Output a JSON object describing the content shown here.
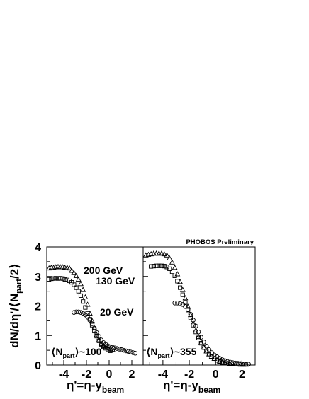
{
  "chart_data": {
    "type": "scatter",
    "collaboration_label": "PHOBOS Preliminary",
    "ylabel": {
      "pre": "dN/dη'/⟨N",
      "sub": "part",
      "post": "/2⟩"
    },
    "ylim": [
      0,
      4
    ],
    "yticks": [
      "0",
      "1",
      "2",
      "3",
      "4"
    ],
    "xlim": [
      -5.5,
      3
    ],
    "xticks": [
      -4,
      -2,
      0,
      2
    ],
    "xtick_labels": [
      "-4",
      "-2",
      "0",
      "2"
    ],
    "legend": {
      "s200": "200 GeV",
      "s130": "130 GeV",
      "s20": "20 GeV"
    },
    "panels": [
      {
        "npart_label": {
          "open": "⟨N",
          "sub": "part",
          "close": "⟩~100"
        },
        "xlabel": {
          "main": "η'=η-y",
          "sub": "beam"
        },
        "series": [
          {
            "key": "s200",
            "marker": "triangle",
            "x": [
              -5.3,
              -5.1,
              -4.9,
              -4.7,
              -4.5,
              -4.3,
              -4.1,
              -3.9,
              -3.7,
              -3.5,
              -3.3,
              -3.1,
              -2.9,
              -2.7,
              -2.5,
              -2.3,
              -2.1,
              -1.9,
              -1.7,
              -1.5,
              -1.3,
              -1.1,
              -0.9,
              -0.7,
              -0.5,
              -0.3,
              -0.1,
              0.1,
              0.3
            ],
            "y": [
              3.28,
              3.3,
              3.3,
              3.32,
              3.33,
              3.32,
              3.32,
              3.3,
              3.3,
              3.28,
              3.2,
              3.12,
              3.02,
              2.9,
              2.75,
              2.55,
              2.3,
              2.05,
              1.75,
              1.5,
              1.25,
              1.02,
              0.85,
              0.72,
              0.65,
              0.6,
              0.57,
              0.55,
              0.53
            ]
          },
          {
            "key": "s130",
            "marker": "square",
            "x": [
              -5.3,
              -5.1,
              -4.9,
              -4.7,
              -4.5,
              -4.3,
              -4.1,
              -3.9,
              -3.7,
              -3.5,
              -3.3,
              -3.1,
              -2.9,
              -2.7,
              -2.5,
              -2.3,
              -2.1,
              -1.9,
              -1.7,
              -1.5,
              -1.3,
              -1.1,
              -0.9,
              -0.7,
              -0.5,
              -0.3,
              -0.1,
              0.1
            ],
            "y": [
              2.9,
              2.92,
              2.93,
              2.94,
              2.93,
              2.94,
              2.93,
              2.9,
              2.88,
              2.85,
              2.8,
              2.72,
              2.62,
              2.5,
              2.35,
              2.15,
              1.95,
              1.75,
              1.55,
              1.35,
              1.15,
              0.98,
              0.82,
              0.7,
              0.62,
              0.57,
              0.52,
              0.48
            ]
          },
          {
            "key": "s20",
            "marker": "circle",
            "x": [
              -3.1,
              -2.9,
              -2.7,
              -2.5,
              -2.3,
              -2.1,
              -1.9,
              -1.7,
              -1.5,
              -1.3,
              -1.1,
              -0.9,
              -0.7,
              -0.5,
              -0.3,
              -0.1,
              0.1,
              0.3,
              0.5,
              0.7,
              0.9,
              1.1,
              1.3,
              1.5,
              1.7,
              1.9,
              2.1,
              2.3
            ],
            "y": [
              1.78,
              1.8,
              1.8,
              1.78,
              1.75,
              1.7,
              1.62,
              1.52,
              1.4,
              1.25,
              1.1,
              0.97,
              0.85,
              0.76,
              0.7,
              0.65,
              0.62,
              0.6,
              0.58,
              0.56,
              0.54,
              0.52,
              0.5,
              0.48,
              0.46,
              0.44,
              0.42,
              0.4
            ]
          }
        ]
      },
      {
        "npart_label": {
          "open": "⟨N",
          "sub": "part",
          "close": "⟩~355"
        },
        "xlabel": {
          "main": "η'=η-y",
          "sub": "beam"
        },
        "series": [
          {
            "key": "s200",
            "marker": "triangle",
            "x": [
              -5.3,
              -5.1,
              -4.9,
              -4.7,
              -4.5,
              -4.3,
              -4.1,
              -3.9,
              -3.7,
              -3.5,
              -3.3,
              -3.1,
              -2.9,
              -2.7,
              -2.5,
              -2.3,
              -2.1,
              -1.9,
              -1.7,
              -1.5,
              -1.3,
              -1.1,
              -0.9,
              -0.7,
              -0.5,
              -0.3,
              -0.1,
              0.1,
              0.3,
              0.5,
              0.7,
              0.9,
              1.1,
              1.3,
              1.5,
              1.7,
              1.9,
              2.1,
              2.3
            ],
            "y": [
              3.72,
              3.74,
              3.76,
              3.78,
              3.78,
              3.78,
              3.78,
              3.76,
              3.72,
              3.62,
              3.48,
              3.3,
              3.08,
              2.82,
              2.55,
              2.27,
              1.98,
              1.7,
              1.42,
              1.18,
              0.96,
              0.76,
              0.6,
              0.47,
              0.37,
              0.29,
              0.22,
              0.17,
              0.13,
              0.1,
              0.08,
              0.06,
              0.05,
              0.04,
              0.03,
              0.03,
              0.02,
              0.02,
              0.02
            ]
          },
          {
            "key": "s130",
            "marker": "square",
            "x": [
              -4.9,
              -4.7,
              -4.5,
              -4.3,
              -4.1,
              -3.9,
              -3.7,
              -3.5,
              -3.3,
              -3.1,
              -2.9,
              -2.7,
              -2.5,
              -2.3,
              -2.1,
              -1.9,
              -1.7,
              -1.5,
              -1.3,
              -1.1,
              -0.9,
              -0.7,
              -0.5,
              -0.3,
              -0.1,
              0.1,
              0.3,
              0.5
            ],
            "y": [
              3.34,
              3.35,
              3.36,
              3.36,
              3.36,
              3.35,
              3.32,
              3.26,
              3.16,
              3.02,
              2.84,
              2.62,
              2.38,
              2.12,
              1.86,
              1.6,
              1.35,
              1.12,
              0.92,
              0.74,
              0.59,
              0.47,
              0.37,
              0.29,
              0.22,
              0.16,
              0.12,
              0.08
            ]
          },
          {
            "key": "s20",
            "marker": "circle",
            "x": [
              -3.1,
              -2.9,
              -2.7,
              -2.5,
              -2.3,
              -2.1,
              -1.9,
              -1.7,
              -1.5,
              -1.3,
              -1.1,
              -0.9,
              -0.7,
              -0.5,
              -0.3,
              -0.1,
              0.1,
              0.3,
              0.5,
              0.7,
              0.9,
              1.1,
              1.3,
              1.5,
              1.7,
              1.9,
              2.1,
              2.3,
              2.5
            ],
            "y": [
              2.1,
              2.1,
              2.08,
              2.05,
              1.98,
              1.88,
              1.72,
              1.52,
              1.32,
              1.12,
              0.94,
              0.78,
              0.64,
              0.52,
              0.42,
              0.34,
              0.28,
              0.23,
              0.18,
              0.15,
              0.12,
              0.1,
              0.08,
              0.07,
              0.06,
              0.05,
              0.04,
              0.03,
              0.03
            ]
          }
        ]
      }
    ]
  }
}
